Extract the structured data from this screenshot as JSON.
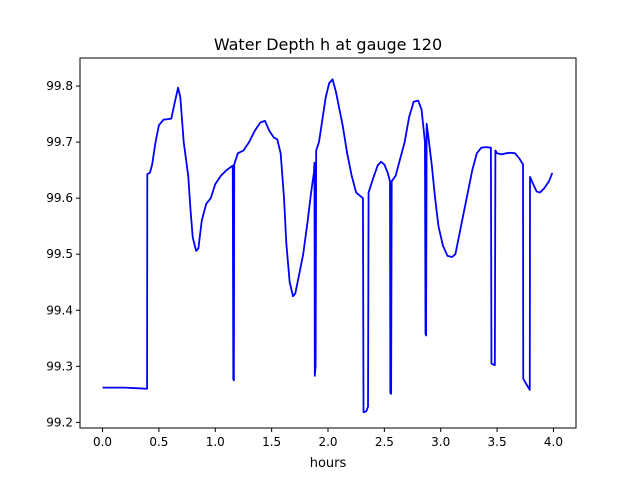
{
  "chart_data": {
    "type": "line",
    "title": "Water Depth h at gauge 120",
    "xlabel": "hours",
    "ylabel": "",
    "xlim": [
      -0.2,
      4.2
    ],
    "ylim": [
      99.19,
      99.85
    ],
    "xticks": [
      0.0,
      0.5,
      1.0,
      1.5,
      2.0,
      2.5,
      3.0,
      3.5,
      4.0
    ],
    "xtick_labels": [
      "0.0",
      "0.5",
      "1.0",
      "1.5",
      "2.0",
      "2.5",
      "3.0",
      "3.5",
      "4.0"
    ],
    "yticks": [
      99.2,
      99.3,
      99.4,
      99.5,
      99.6,
      99.7,
      99.8
    ],
    "ytick_labels": [
      "99.2",
      "99.3",
      "99.4",
      "99.5",
      "99.6",
      "99.7",
      "99.8"
    ],
    "grid": false,
    "legend": "none",
    "series": [
      {
        "color": "#0000ff",
        "points": [
          [
            0.0,
            99.262
          ],
          [
            0.2,
            99.262
          ],
          [
            0.3,
            99.261
          ],
          [
            0.395,
            99.26
          ],
          [
            0.397,
            99.643
          ],
          [
            0.42,
            99.645
          ],
          [
            0.44,
            99.66
          ],
          [
            0.47,
            99.7
          ],
          [
            0.5,
            99.73
          ],
          [
            0.54,
            99.74
          ],
          [
            0.58,
            99.741
          ],
          [
            0.61,
            99.742
          ],
          [
            0.64,
            99.77
          ],
          [
            0.67,
            99.797
          ],
          [
            0.69,
            99.78
          ],
          [
            0.72,
            99.7
          ],
          [
            0.76,
            99.64
          ],
          [
            0.78,
            99.58
          ],
          [
            0.8,
            99.53
          ],
          [
            0.83,
            99.506
          ],
          [
            0.85,
            99.51
          ],
          [
            0.88,
            99.56
          ],
          [
            0.92,
            99.59
          ],
          [
            0.96,
            99.6
          ],
          [
            1.0,
            99.625
          ],
          [
            1.05,
            99.64
          ],
          [
            1.1,
            99.65
          ],
          [
            1.155,
            99.658
          ],
          [
            1.16,
            99.277
          ],
          [
            1.165,
            99.275
          ],
          [
            1.168,
            99.66
          ],
          [
            1.2,
            99.68
          ],
          [
            1.25,
            99.685
          ],
          [
            1.3,
            99.7
          ],
          [
            1.35,
            99.72
          ],
          [
            1.4,
            99.735
          ],
          [
            1.44,
            99.738
          ],
          [
            1.48,
            99.72
          ],
          [
            1.52,
            99.708
          ],
          [
            1.55,
            99.705
          ],
          [
            1.58,
            99.68
          ],
          [
            1.61,
            99.6
          ],
          [
            1.63,
            99.52
          ],
          [
            1.66,
            99.45
          ],
          [
            1.69,
            99.425
          ],
          [
            1.71,
            99.43
          ],
          [
            1.74,
            99.46
          ],
          [
            1.78,
            99.5
          ],
          [
            1.82,
            99.56
          ],
          [
            1.85,
            99.61
          ],
          [
            1.875,
            99.645
          ],
          [
            1.88,
            99.663
          ],
          [
            1.883,
            99.283
          ],
          [
            1.89,
            99.3
          ],
          [
            1.895,
            99.685
          ],
          [
            1.92,
            99.7
          ],
          [
            1.95,
            99.74
          ],
          [
            1.98,
            99.78
          ],
          [
            2.01,
            99.805
          ],
          [
            2.04,
            99.812
          ],
          [
            2.07,
            99.79
          ],
          [
            2.1,
            99.76
          ],
          [
            2.13,
            99.73
          ],
          [
            2.17,
            99.68
          ],
          [
            2.21,
            99.64
          ],
          [
            2.25,
            99.61
          ],
          [
            2.31,
            99.6
          ],
          [
            2.315,
            99.218
          ],
          [
            2.34,
            99.22
          ],
          [
            2.355,
            99.228
          ],
          [
            2.36,
            99.61
          ],
          [
            2.4,
            99.635
          ],
          [
            2.44,
            99.658
          ],
          [
            2.47,
            99.665
          ],
          [
            2.5,
            99.66
          ],
          [
            2.53,
            99.645
          ],
          [
            2.55,
            99.63
          ],
          [
            2.553,
            99.253
          ],
          [
            2.56,
            99.251
          ],
          [
            2.565,
            99.63
          ],
          [
            2.6,
            99.64
          ],
          [
            2.64,
            99.67
          ],
          [
            2.68,
            99.7
          ],
          [
            2.72,
            99.745
          ],
          [
            2.76,
            99.772
          ],
          [
            2.8,
            99.774
          ],
          [
            2.83,
            99.758
          ],
          [
            2.86,
            99.7
          ],
          [
            2.865,
            99.358
          ],
          [
            2.87,
            99.355
          ],
          [
            2.875,
            99.733
          ],
          [
            2.89,
            99.71
          ],
          [
            2.92,
            99.66
          ],
          [
            2.95,
            99.6
          ],
          [
            2.98,
            99.55
          ],
          [
            3.02,
            99.515
          ],
          [
            3.06,
            99.497
          ],
          [
            3.1,
            99.495
          ],
          [
            3.13,
            99.5
          ],
          [
            3.16,
            99.53
          ],
          [
            3.2,
            99.57
          ],
          [
            3.24,
            99.61
          ],
          [
            3.28,
            99.65
          ],
          [
            3.32,
            99.68
          ],
          [
            3.36,
            99.69
          ],
          [
            3.4,
            99.691
          ],
          [
            3.445,
            99.69
          ],
          [
            3.45,
            99.305
          ],
          [
            3.48,
            99.302
          ],
          [
            3.485,
            99.685
          ],
          [
            3.5,
            99.68
          ],
          [
            3.54,
            99.678
          ],
          [
            3.58,
            99.68
          ],
          [
            3.62,
            99.681
          ],
          [
            3.66,
            99.68
          ],
          [
            3.7,
            99.67
          ],
          [
            3.73,
            99.66
          ],
          [
            3.732,
            99.278
          ],
          [
            3.76,
            99.268
          ],
          [
            3.79,
            99.258
          ],
          [
            3.792,
            99.638
          ],
          [
            3.82,
            99.625
          ],
          [
            3.85,
            99.612
          ],
          [
            3.88,
            99.61
          ],
          [
            3.92,
            99.618
          ],
          [
            3.96,
            99.63
          ],
          [
            3.99,
            99.645
          ]
        ]
      }
    ]
  }
}
